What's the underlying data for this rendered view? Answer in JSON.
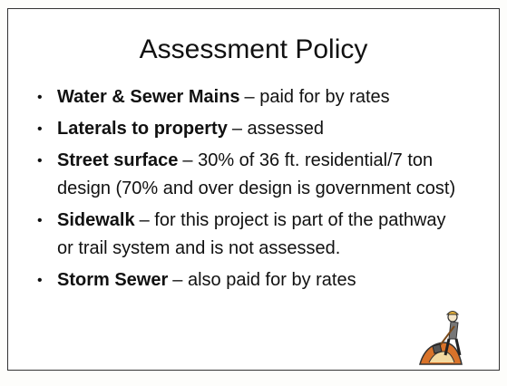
{
  "title": "Assessment Policy",
  "bullets": [
    {
      "term": "Water & Sewer Mains",
      "text": "– paid for by rates"
    },
    {
      "term": "Laterals to property",
      "text": "– assessed"
    },
    {
      "term": "Street surface",
      "text": "– 30% of 36 ft. residential/7 ton design (70% and over design is government cost)"
    },
    {
      "term": "Sidewalk",
      "text": "– for this project is part of the pathway or trail system and is not assessed."
    },
    {
      "term": "Storm Sewer",
      "text": "– also paid for by rates"
    }
  ]
}
